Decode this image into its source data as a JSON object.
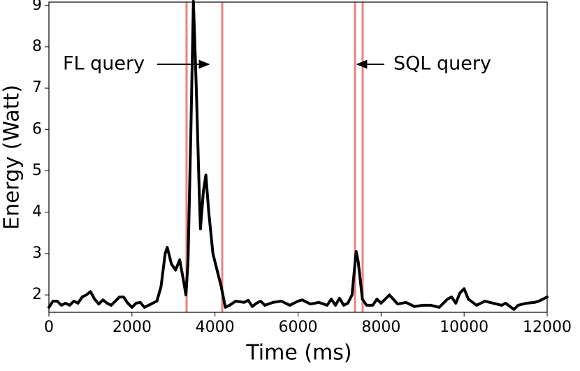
{
  "chart_data": {
    "type": "line",
    "xlabel": "Time (ms)",
    "ylabel": "Energy (Watt)",
    "x": [
      0,
      100,
      200,
      300,
      400,
      500,
      600,
      700,
      800,
      900,
      1000,
      1100,
      1200,
      1300,
      1400,
      1500,
      1600,
      1700,
      1800,
      1900,
      2000,
      2100,
      2200,
      2300,
      2400,
      2500,
      2600,
      2700,
      2800,
      2850,
      2950,
      3050,
      3150,
      3250,
      3300,
      3350,
      3420,
      3480,
      3550,
      3620,
      3650,
      3720,
      3780,
      3850,
      3950,
      4050,
      4150,
      4250,
      4350,
      4500,
      4700,
      4800,
      4900,
      5000,
      5100,
      5200,
      5400,
      5600,
      5800,
      6000,
      6100,
      6300,
      6500,
      6700,
      6800,
      6900,
      7000,
      7100,
      7200,
      7300,
      7400,
      7450,
      7550,
      7650,
      7800,
      7900,
      8000,
      8200,
      8400,
      8600,
      8800,
      9000,
      9200,
      9400,
      9600,
      9700,
      9800,
      9900,
      10000,
      10100,
      10300,
      10500,
      10700,
      10900,
      11000,
      11200,
      11300,
      11500,
      11700,
      11800,
      12000
    ],
    "series": [
      {
        "name": "Energy",
        "color": "#000000",
        "values": [
          1.7,
          1.85,
          1.85,
          1.75,
          1.8,
          1.75,
          1.85,
          1.8,
          1.95,
          2.0,
          2.08,
          1.9,
          1.78,
          1.88,
          1.8,
          1.75,
          1.85,
          1.95,
          1.95,
          1.8,
          1.7,
          1.8,
          1.82,
          1.7,
          1.75,
          1.8,
          1.85,
          2.2,
          3.0,
          3.15,
          2.75,
          2.6,
          2.85,
          2.3,
          2.0,
          2.8,
          6.0,
          9.1,
          7.0,
          4.5,
          3.6,
          4.5,
          4.9,
          4.0,
          3.0,
          2.6,
          2.2,
          1.7,
          1.75,
          1.85,
          1.82,
          1.87,
          1.72,
          1.8,
          1.85,
          1.75,
          1.82,
          1.85,
          1.75,
          1.85,
          1.88,
          1.78,
          1.82,
          1.75,
          1.9,
          1.75,
          1.92,
          1.75,
          1.8,
          2.0,
          3.05,
          2.8,
          1.9,
          1.75,
          1.75,
          1.9,
          1.8,
          2.0,
          1.78,
          1.82,
          1.72,
          1.75,
          1.75,
          1.7,
          1.9,
          1.95,
          1.8,
          2.05,
          2.15,
          1.9,
          1.75,
          1.85,
          1.8,
          1.75,
          1.8,
          1.65,
          1.75,
          1.8,
          1.82,
          1.85,
          1.95
        ]
      }
    ],
    "vlines": [
      3315,
      4174,
      7371,
      7556
    ],
    "vline_color": "#f08080",
    "annotations": [
      "FL query",
      "SQL query"
    ],
    "annotation_color": "#e8141c",
    "xlim": [
      0,
      12000
    ],
    "xticks": [
      0,
      2000,
      4000,
      6000,
      8000,
      10000,
      12000
    ],
    "ylim": [
      1.58,
      9.08
    ],
    "yticks": [
      2,
      3,
      4,
      5,
      6,
      7,
      8,
      9
    ]
  }
}
